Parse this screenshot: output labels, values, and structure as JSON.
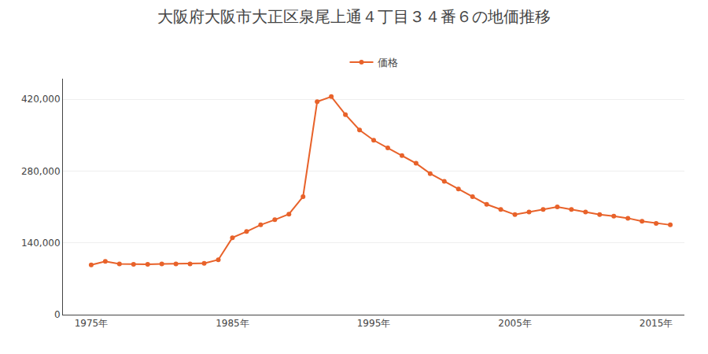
{
  "chart_data": {
    "type": "line",
    "title": "大阪府大阪市大正区泉尾上通４丁目３４番６の地価推移",
    "x": [
      1975,
      1976,
      1977,
      1978,
      1979,
      1980,
      1981,
      1982,
      1983,
      1984,
      1985,
      1986,
      1987,
      1988,
      1989,
      1990,
      1991,
      1992,
      1993,
      1994,
      1995,
      1996,
      1997,
      1998,
      1999,
      2000,
      2001,
      2002,
      2003,
      2004,
      2005,
      2006,
      2007,
      2008,
      2009,
      2010,
      2011,
      2012,
      2013,
      2014,
      2015,
      2016
    ],
    "series": [
      {
        "name": "価格",
        "color": "#E8622A",
        "marker": "circle",
        "values": [
          97000,
          104000,
          99000,
          98000,
          98000,
          99000,
          99000,
          99000,
          100000,
          107000,
          150000,
          162000,
          175000,
          185000,
          196000,
          230000,
          415000,
          425000,
          390000,
          360000,
          340000,
          325000,
          310000,
          295000,
          275000,
          260000,
          245000,
          230000,
          215000,
          205000,
          195000,
          200000,
          205000,
          210000,
          205000,
          200000,
          195000,
          192000,
          188000,
          182000,
          178000,
          175000
        ]
      }
    ],
    "xlim": [
      1973,
      2017
    ],
    "xticks": [
      {
        "value": 1975,
        "label": "1975年"
      },
      {
        "value": 1985,
        "label": "1985年"
      },
      {
        "value": 1995,
        "label": "1995年"
      },
      {
        "value": 2005,
        "label": "2005年"
      },
      {
        "value": 2015,
        "label": "2015年"
      }
    ],
    "ylim": [
      0,
      460000
    ],
    "yticks": [
      0,
      {
        "value": 140000,
        "label": "140,000"
      },
      {
        "value": 280000,
        "label": "280,000"
      },
      {
        "value": 420000,
        "label": "420,000"
      }
    ],
    "grid": true,
    "legend": "top"
  }
}
